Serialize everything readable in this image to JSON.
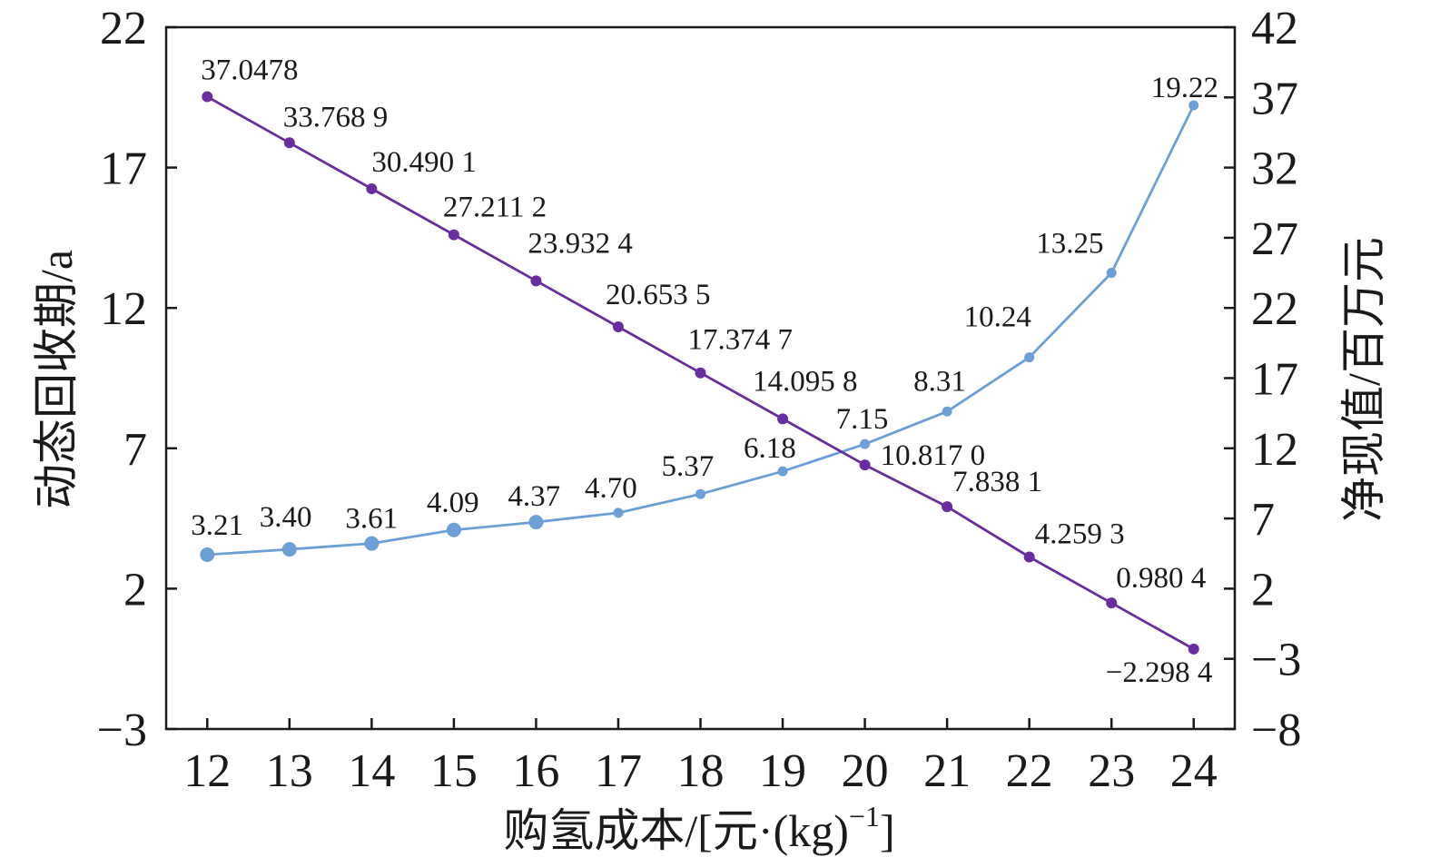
{
  "chart_data": {
    "type": "line",
    "x": [
      12,
      13,
      14,
      15,
      16,
      17,
      18,
      19,
      20,
      21,
      22,
      23,
      24
    ],
    "xlim": [
      11.5,
      24.5
    ],
    "xlabel": {
      "text": "购氢成本/[元·(kg)",
      "superscript": "−1",
      "suffix": "]"
    },
    "grid": false,
    "y_left": {
      "label": "动态回收期/a",
      "lim": [
        -3,
        22
      ],
      "ticks": [
        -3,
        2,
        7,
        12,
        17,
        22
      ],
      "tick_labels": [
        "−3",
        "2",
        "7",
        "12",
        "17",
        "22"
      ],
      "series": {
        "color": "#6b9fd6",
        "values": [
          3.21,
          3.4,
          3.61,
          4.09,
          4.37,
          4.7,
          5.37,
          6.18,
          7.15,
          8.31,
          10.24,
          13.25,
          19.22
        ],
        "labels": [
          "3.21",
          "3.40",
          "3.61",
          "4.09",
          "4.37",
          "4.70",
          "5.37",
          "6.18",
          "7.15",
          "8.31",
          "10.24",
          "13.25",
          "19.22"
        ]
      }
    },
    "y_right": {
      "label": "净现值/百万元",
      "lim": [
        -8,
        42
      ],
      "ticks": [
        -8,
        -3,
        2,
        7,
        12,
        17,
        22,
        27,
        32,
        37,
        42
      ],
      "tick_labels": [
        "−8",
        "−3",
        "2",
        "7",
        "12",
        "17",
        "22",
        "27",
        "32",
        "37",
        "42"
      ],
      "series": {
        "color": "#6a2d9f",
        "values": [
          37.0478,
          33.7689,
          30.4901,
          27.2112,
          23.9324,
          20.6535,
          17.3747,
          14.0958,
          10.817,
          7.8381,
          4.2593,
          0.9804,
          -2.2984
        ],
        "labels": [
          "37.0478",
          "33.768 9",
          "30.490 1",
          "27.211 2",
          "23.932 4",
          "20.653 5",
          "17.374 7",
          "14.095 8",
          "10.817 0",
          "7.838 1",
          "4.259 3",
          "0.980 4",
          "−2.298 4"
        ]
      }
    }
  }
}
